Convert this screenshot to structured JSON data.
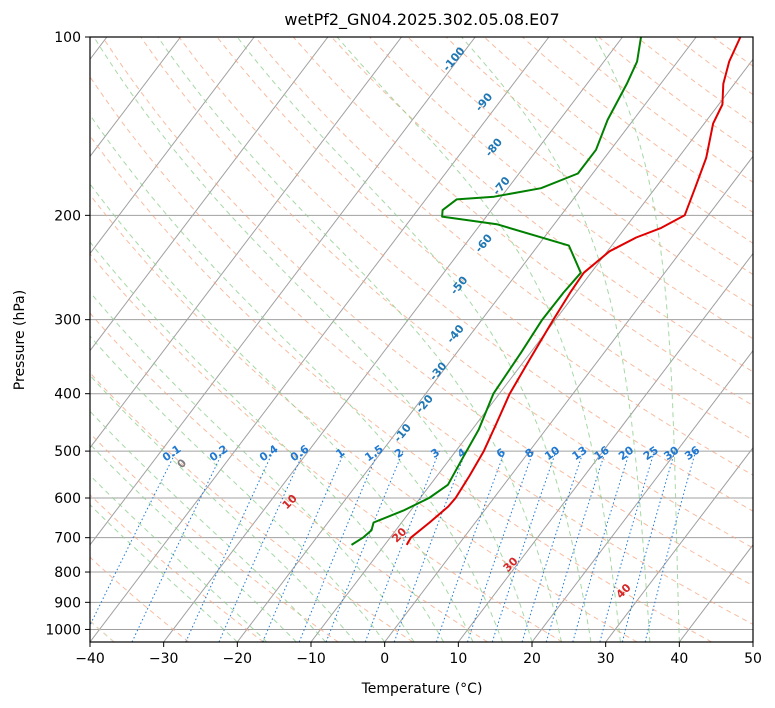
{
  "chart_data": {
    "type": "line",
    "title": "wetPf2_GN04.2025.302.05.08.E07",
    "xlabel": "Temperature (°C)",
    "ylabel": "Pressure (hPa)",
    "xlim": [
      -40,
      50
    ],
    "ylim": [
      1050,
      100
    ],
    "x_ticks": [
      "−40",
      "−30",
      "−20",
      "−10",
      "0",
      "10",
      "20",
      "30",
      "40",
      "50"
    ],
    "x_tick_values": [
      -40,
      -30,
      -20,
      -10,
      0,
      10,
      20,
      30,
      40,
      50
    ],
    "y_ticks": [
      "100",
      "200",
      "300",
      "400",
      "500",
      "600",
      "700",
      "800",
      "900",
      "1000"
    ],
    "y_tick_values": [
      100,
      200,
      300,
      400,
      500,
      600,
      700,
      800,
      900,
      1000
    ],
    "skew_deg_per_decade": 61,
    "colors": {
      "temperature": "#e00000",
      "dewpoint": "#008000",
      "isotherm": "#a0a0a0",
      "dry_adiabat": "#f4a582",
      "moist_adiabat": "#8fce8f",
      "mixing_ratio": "#1f78d1",
      "dry_label": "#d62728",
      "moist_label": "#1f77b4",
      "ozone_dry": "#d8c8a8"
    },
    "series": [
      {
        "name": "Temperature",
        "points": [
          [
            -7,
            720
          ],
          [
            -7.2,
            700
          ],
          [
            -6.2,
            660
          ],
          [
            -5.3,
            620
          ],
          [
            -5.2,
            600
          ],
          [
            -5.6,
            550
          ],
          [
            -6.2,
            500
          ],
          [
            -7.3,
            450
          ],
          [
            -8.6,
            400
          ],
          [
            -9.4,
            350
          ],
          [
            -10.3,
            300
          ],
          [
            -10.8,
            270
          ],
          [
            -11,
            250
          ],
          [
            -9.7,
            230
          ],
          [
            -7.5,
            218
          ],
          [
            -5.1,
            210
          ],
          [
            -3.2,
            200
          ],
          [
            -4.6,
            180
          ],
          [
            -6.2,
            160
          ],
          [
            -8.8,
            140
          ],
          [
            -9.5,
            130
          ],
          [
            -11.5,
            120
          ],
          [
            -13,
            110
          ],
          [
            -14,
            100
          ]
        ]
      },
      {
        "name": "Dewpoint",
        "points": [
          [
            -14.5,
            720
          ],
          [
            -13.7,
            700
          ],
          [
            -13.3,
            680
          ],
          [
            -13.8,
            660
          ],
          [
            -11,
            630
          ],
          [
            -8.8,
            600
          ],
          [
            -7.6,
            570
          ],
          [
            -8.4,
            510
          ],
          [
            -9.1,
            460
          ],
          [
            -10.8,
            400
          ],
          [
            -11.3,
            340
          ],
          [
            -11.8,
            300
          ],
          [
            -11.7,
            270
          ],
          [
            -11.4,
            250
          ],
          [
            -15.8,
            225
          ],
          [
            -27.8,
            207
          ],
          [
            -36,
            201
          ],
          [
            -36.6,
            196
          ],
          [
            -35.8,
            188
          ],
          [
            -31,
            186
          ],
          [
            -25.5,
            180
          ],
          [
            -22,
            170
          ],
          [
            -22,
            155
          ],
          [
            -23.5,
            138
          ],
          [
            -24.6,
            120
          ],
          [
            -25.5,
            110
          ],
          [
            -27.5,
            100
          ]
        ]
      }
    ],
    "dry_adiabat_labels": [
      "0",
      "10",
      "20",
      "30",
      "40"
    ],
    "dry_adiabat_theta_c": [
      0,
      10,
      20,
      30,
      40
    ],
    "moist_adiabat_labels": [
      "-100",
      "-90",
      "-80",
      "-70",
      "-60",
      "-50",
      "-40",
      "-30",
      "-20",
      "-10"
    ],
    "moist_adiabat_label_positions": [
      [
        -50,
        110
      ],
      [
        -41.5,
        130
      ],
      [
        -35.5,
        155
      ],
      [
        -30.5,
        180
      ],
      [
        -27,
        225
      ],
      [
        -26,
        265
      ],
      [
        -21.5,
        320
      ],
      [
        -20,
        370
      ],
      [
        -18.5,
        420
      ],
      [
        -18.5,
        470
      ]
    ],
    "mixing_ratio_labels": [
      "0.1",
      "0.2",
      "0.4",
      "0.6",
      "1",
      "1.5",
      "2",
      "3",
      "4",
      "6",
      "8",
      "10",
      "13",
      "16",
      "20",
      "25",
      "30",
      "36"
    ],
    "mixing_ratio_values": [
      0.1,
      0.2,
      0.4,
      0.6,
      1,
      1.5,
      2,
      3,
      4,
      6,
      8,
      10,
      13,
      16,
      20,
      25,
      30,
      36
    ]
  }
}
